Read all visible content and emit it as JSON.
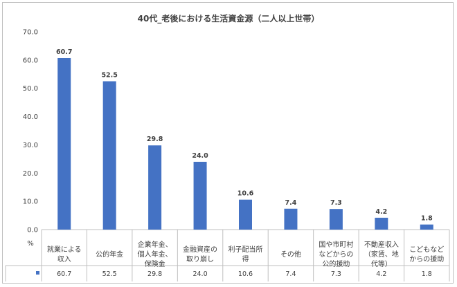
{
  "chart_data": {
    "type": "bar",
    "title": "40代_老後における生活資金源（二人以上世帯）",
    "unit": "%",
    "categories": [
      [
        "就業による",
        "収入"
      ],
      [
        "公的年金"
      ],
      [
        "企業年金、",
        "個人年金、",
        "保険金"
      ],
      [
        "金融資産の",
        "取り崩し"
      ],
      [
        "利子配当所",
        "得"
      ],
      [
        "その他"
      ],
      [
        "国や市町村",
        "などからの",
        "公的援助"
      ],
      [
        "不動産収入",
        "（家賃、地",
        "代等）"
      ],
      [
        "こどもなど",
        "からの援助"
      ]
    ],
    "values": [
      60.7,
      52.5,
      29.8,
      24.0,
      10.6,
      7.4,
      7.3,
      4.2,
      1.8
    ],
    "value_labels": [
      "60.7",
      "52.5",
      "29.8",
      "24.0",
      "10.6",
      "7.4",
      "7.3",
      "4.2",
      "1.8"
    ],
    "ylim": [
      0,
      70
    ],
    "yticks": [
      "0.0",
      "10.0",
      "20.0",
      "30.0",
      "40.0",
      "50.0",
      "60.0",
      "70.0"
    ],
    "grid": false,
    "data_table": true,
    "bar_color": "#4472c4"
  }
}
